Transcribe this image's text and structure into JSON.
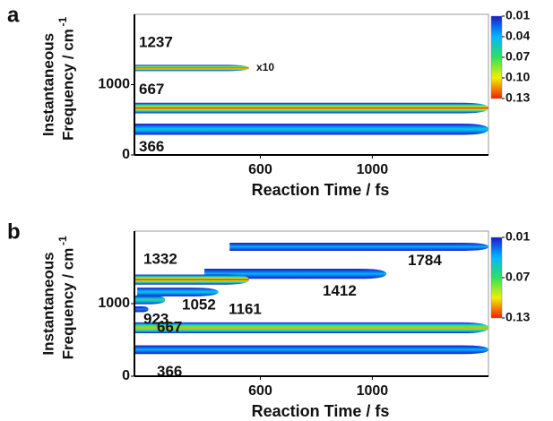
{
  "chart_data": [
    {
      "type": "spectrogram",
      "panel": "a",
      "x_label": "Reaction Time / fs",
      "y_label_lines": [
        "Instantaneous",
        "Frequency / cm"
      ],
      "y_label_sup": "-1",
      "xlim": [
        150,
        1415
      ],
      "xticks": [
        600,
        1000
      ],
      "ylim": [
        0,
        2000
      ],
      "yticks": [
        0,
        1000
      ],
      "annotation": "x10",
      "peaks": [
        {
          "frequency": 1237,
          "start": 150,
          "end": 560,
          "width": 45,
          "intensity": 0.13
        },
        {
          "frequency": 667,
          "start": 150,
          "end": 1415,
          "width": 75,
          "intensity": 0.13
        },
        {
          "frequency": 366,
          "start": 150,
          "end": 1415,
          "width": 80,
          "intensity": 0.05
        }
      ],
      "colorbar": {
        "clim": [
          0.01,
          0.13
        ],
        "ticks": [
          0.01,
          0.04,
          0.07,
          {
            "value": 0.1,
            "label": "0.10"
          },
          0.13
        ],
        "colors": [
          "#1a1acc",
          "#00b8ff",
          "#30e060",
          "#f0f000",
          "#f02000"
        ]
      }
    },
    {
      "type": "spectrogram",
      "panel": "b",
      "x_label": "Reaction Time / fs",
      "y_label_lines": [
        "Instantaneous",
        "Frequency / cm"
      ],
      "y_label_sup": "-1",
      "xlim": [
        150,
        1415
      ],
      "xticks": [
        600,
        1000
      ],
      "ylim": [
        0,
        2000
      ],
      "yticks": [
        0,
        1000
      ],
      "peaks": [
        {
          "frequency": 1784,
          "start": 490,
          "end": 1415,
          "width": 55,
          "intensity": 0.04
        },
        {
          "frequency": 1412,
          "start": 400,
          "end": 1050,
          "width": 70,
          "intensity": 0.04
        },
        {
          "frequency": 1332,
          "start": 150,
          "end": 560,
          "width": 70,
          "intensity": 0.13
        },
        {
          "frequency": 1161,
          "start": 160,
          "end": 450,
          "width": 60,
          "intensity": 0.05
        },
        {
          "frequency": 1052,
          "start": 150,
          "end": 260,
          "width": 60,
          "intensity": 0.07
        },
        {
          "frequency": 923,
          "start": 150,
          "end": 200,
          "width": 40,
          "intensity": 0.03
        },
        {
          "frequency": 667,
          "start": 150,
          "end": 1415,
          "width": 75,
          "intensity": 0.11
        },
        {
          "frequency": 366,
          "start": 150,
          "end": 1415,
          "width": 60,
          "intensity": 0.04
        }
      ],
      "colorbar": {
        "clim": [
          0.01,
          0.13
        ],
        "ticks": [
          0.01,
          0.07,
          0.13
        ],
        "colors": [
          "#1a1acc",
          "#00b8ff",
          "#30e060",
          "#f0f000",
          "#f02000"
        ]
      }
    }
  ]
}
